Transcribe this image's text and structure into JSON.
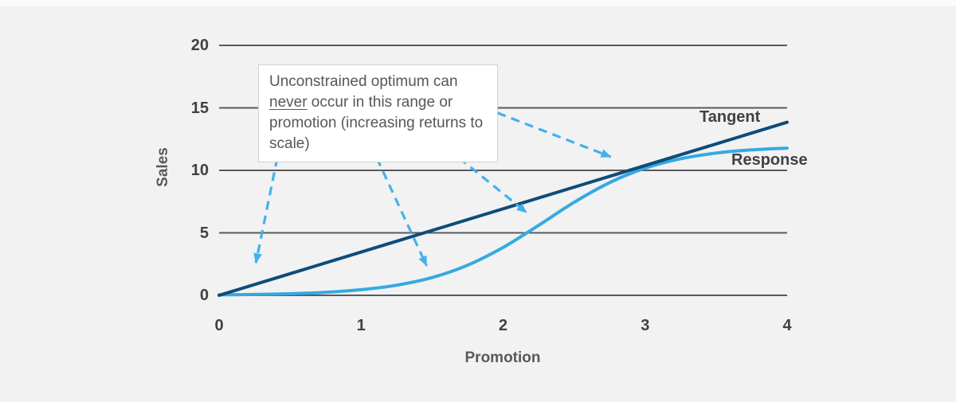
{
  "chart_data": {
    "type": "line",
    "title": "",
    "xlabel": "Promotion",
    "ylabel": "Sales",
    "xlim": [
      0,
      4
    ],
    "ylim": [
      0,
      20
    ],
    "x_ticks": [
      0,
      1,
      2,
      3,
      4
    ],
    "y_ticks": [
      0,
      5,
      10,
      15,
      20
    ],
    "grid": "horizontal-only",
    "grid_color": "#59595b",
    "background_color": "#f2f2f3",
    "legend": {
      "position": "inline-right-of-plot",
      "entries": [
        "Tangent",
        "Response"
      ]
    },
    "series": [
      {
        "name": "Tangent",
        "shape": "straight-line-through-origin",
        "color": "#0f4c78",
        "x": [
          0,
          4
        ],
        "y": [
          0,
          13.85
        ]
      },
      {
        "name": "Response",
        "shape": "s-curve",
        "color": "#36a9e1",
        "x": [
          0,
          0.25,
          0.5,
          0.75,
          1,
          1.25,
          1.5,
          1.75,
          2,
          2.25,
          2.5,
          2.75,
          3,
          3.25,
          3.5,
          3.75,
          4
        ],
        "y": [
          0.04,
          0.07,
          0.13,
          0.24,
          0.45,
          0.81,
          1.42,
          2.41,
          3.83,
          5.6,
          7.44,
          9.02,
          10.18,
          10.93,
          11.38,
          11.64,
          11.78
        ]
      }
    ],
    "annotations": {
      "callout": {
        "text_before": "Unconstrained optimum can ",
        "underlined_word": "never",
        "text_after": " occur in this range or promotion (increasing returns to scale)"
      },
      "arrow_color": "#44b1e8",
      "arrows": [
        {
          "from": [
            0.41,
            11.0
          ],
          "to": [
            0.25,
            2.1
          ]
        },
        {
          "from": [
            1.11,
            11.0
          ],
          "to": [
            1.48,
            1.9
          ]
        },
        {
          "from": [
            1.69,
            11.0
          ],
          "to": [
            2.2,
            6.3
          ]
        },
        {
          "from": [
            1.96,
            14.6
          ],
          "to": [
            2.8,
            10.9
          ]
        }
      ]
    }
  }
}
